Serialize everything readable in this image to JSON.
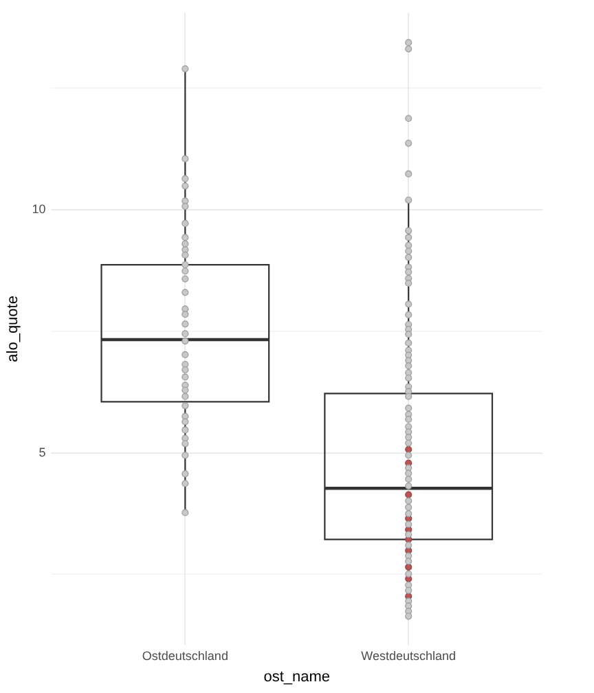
{
  "chart_data": {
    "type": "box",
    "categories": [
      "Ostdeutschland",
      "Westdeutschland"
    ],
    "xlabel": "ost_name",
    "ylabel": "alo_quote",
    "ylim": [
      1.05,
      14.05
    ],
    "yticks": [
      {
        "value": 2.5,
        "label": null
      },
      5,
      {
        "value": 7.5,
        "label": null
      },
      10,
      {
        "value": 12.5,
        "label": null
      }
    ],
    "grid": true,
    "legend": false,
    "marker": "circle",
    "series": [
      {
        "type": "box",
        "color": "#333333",
        "boxes": [
          {
            "low": 3.78,
            "q1": 6.05,
            "median": 7.33,
            "q3": 8.87,
            "high": 12.89
          },
          {
            "low": 1.65,
            "q1": 3.22,
            "median": 4.27,
            "q3": 6.22,
            "high": 10.2
          }
        ]
      },
      {
        "type": "scatter",
        "color": "#c9c9c9",
        "x": [
          "Ostdeutschland",
          "Ostdeutschland",
          "Ostdeutschland",
          "Ostdeutschland",
          "Ostdeutschland",
          "Ostdeutschland",
          "Ostdeutschland",
          "Ostdeutschland",
          "Ostdeutschland",
          "Ostdeutschland",
          "Ostdeutschland",
          "Ostdeutschland",
          "Ostdeutschland",
          "Ostdeutschland",
          "Ostdeutschland",
          "Ostdeutschland",
          "Ostdeutschland",
          "Ostdeutschland",
          "Ostdeutschland",
          "Ostdeutschland",
          "Ostdeutschland",
          "Ostdeutschland",
          "Ostdeutschland",
          "Ostdeutschland",
          "Ostdeutschland",
          "Ostdeutschland",
          "Ostdeutschland",
          "Ostdeutschland",
          "Ostdeutschland",
          "Ostdeutschland",
          "Ostdeutschland",
          "Ostdeutschland",
          "Ostdeutschland",
          "Ostdeutschland",
          "Ostdeutschland",
          "Ostdeutschland",
          "Ostdeutschland"
        ],
        "values": [
          12.9,
          11.05,
          10.64,
          10.49,
          10.18,
          10.07,
          9.72,
          9.43,
          9.3,
          9.18,
          9.07,
          8.87,
          8.74,
          8.58,
          8.3,
          7.96,
          7.85,
          7.65,
          7.45,
          7.3,
          7.02,
          6.82,
          6.71,
          6.56,
          6.39,
          6.29,
          6.16,
          5.97,
          5.75,
          5.64,
          5.47,
          5.3,
          5.19,
          4.95,
          4.57,
          4.37,
          3.77
        ]
      },
      {
        "type": "scatter",
        "color": "#c9c9c9",
        "x": [
          "Westdeutschland",
          "Westdeutschland",
          "Westdeutschland",
          "Westdeutschland",
          "Westdeutschland",
          "Westdeutschland",
          "Westdeutschland",
          "Westdeutschland",
          "Westdeutschland",
          "Westdeutschland",
          "Westdeutschland",
          "Westdeutschland",
          "Westdeutschland",
          "Westdeutschland",
          "Westdeutschland",
          "Westdeutschland",
          "Westdeutschland",
          "Westdeutschland",
          "Westdeutschland",
          "Westdeutschland",
          "Westdeutschland",
          "Westdeutschland",
          "Westdeutschland",
          "Westdeutschland",
          "Westdeutschland",
          "Westdeutschland",
          "Westdeutschland",
          "Westdeutschland",
          "Westdeutschland",
          "Westdeutschland",
          "Westdeutschland",
          "Westdeutschland",
          "Westdeutschland",
          "Westdeutschland",
          "Westdeutschland",
          "Westdeutschland",
          "Westdeutschland",
          "Westdeutschland",
          "Westdeutschland",
          "Westdeutschland",
          "Westdeutschland",
          "Westdeutschland",
          "Westdeutschland",
          "Westdeutschland",
          "Westdeutschland",
          "Westdeutschland",
          "Westdeutschland",
          "Westdeutschland",
          "Westdeutschland",
          "Westdeutschland",
          "Westdeutschland",
          "Westdeutschland",
          "Westdeutschland",
          "Westdeutschland",
          "Westdeutschland",
          "Westdeutschland",
          "Westdeutschland"
        ],
        "values": [
          13.44,
          13.31,
          11.88,
          11.37,
          10.74,
          10.2,
          9.57,
          9.43,
          9.27,
          9.15,
          9.02,
          8.82,
          8.72,
          8.59,
          8.49,
          8.06,
          7.84,
          7.64,
          7.54,
          7.44,
          7.26,
          7.11,
          7.01,
          6.9,
          6.79,
          6.65,
          6.54,
          6.36,
          6.26,
          6.16,
          5.92,
          5.79,
          5.69,
          5.54,
          5.43,
          5.32,
          5.2,
          4.95,
          4.69,
          4.58,
          4.46,
          4.32,
          4.01,
          3.88,
          3.75,
          3.53,
          3.32,
          3.1,
          2.88,
          2.77,
          2.51,
          2.28,
          2.17,
          1.95,
          1.85,
          1.74,
          1.64
        ]
      },
      {
        "type": "scatter",
        "color": "#bb5555",
        "x": [
          "Westdeutschland",
          "Westdeutschland",
          "Westdeutschland",
          "Westdeutschland",
          "Westdeutschland",
          "Westdeutschland",
          "Westdeutschland",
          "Westdeutschland",
          "Westdeutschland",
          "Westdeutschland"
        ],
        "values": [
          5.07,
          4.79,
          4.14,
          3.65,
          3.42,
          3.22,
          2.99,
          2.65,
          2.41,
          2.05
        ]
      }
    ]
  }
}
